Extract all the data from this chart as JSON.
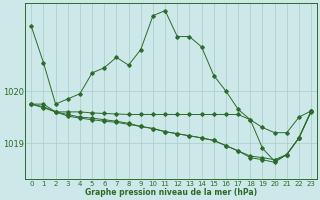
{
  "xlabel": "Graphe pression niveau de la mer (hPa)",
  "background_color": "#cce8e8",
  "grid_color": "#aacccc",
  "line_color": "#2d6b2d",
  "x_ticks": [
    0,
    1,
    2,
    3,
    4,
    5,
    6,
    7,
    8,
    9,
    10,
    11,
    12,
    13,
    14,
    15,
    16,
    17,
    18,
    19,
    20,
    21,
    22,
    23
  ],
  "ylim": [
    1018.3,
    1021.7
  ],
  "yticks": [
    1019,
    1020
  ],
  "series": [
    [
      1021.25,
      1020.55,
      1019.75,
      1019.85,
      1019.95,
      1020.35,
      1020.45,
      1020.65,
      1020.5,
      1020.8,
      1021.45,
      1021.55,
      1021.05,
      1021.05,
      1020.85,
      1020.3,
      1020.0,
      1019.65,
      1019.45,
      1018.9,
      1018.65,
      1018.78,
      1019.1,
      1019.6
    ],
    [
      1019.75,
      1019.75,
      1019.6,
      1019.6,
      1019.6,
      1019.58,
      1019.57,
      1019.56,
      1019.55,
      1019.55,
      1019.55,
      1019.55,
      1019.55,
      1019.55,
      1019.55,
      1019.55,
      1019.55,
      1019.55,
      1019.45,
      1019.3,
      1019.2,
      1019.2,
      1019.5,
      1019.62
    ],
    [
      1019.75,
      1019.7,
      1019.6,
      1019.55,
      1019.5,
      1019.48,
      1019.45,
      1019.42,
      1019.38,
      1019.32,
      1019.28,
      1019.22,
      1019.18,
      1019.14,
      1019.1,
      1019.05,
      1018.95,
      1018.85,
      1018.75,
      1018.72,
      1018.68,
      1018.78,
      1019.1,
      1019.62
    ],
    [
      1019.75,
      1019.68,
      1019.6,
      1019.52,
      1019.48,
      1019.45,
      1019.42,
      1019.4,
      1019.36,
      1019.32,
      1019.28,
      1019.22,
      1019.18,
      1019.14,
      1019.1,
      1019.05,
      1018.95,
      1018.85,
      1018.72,
      1018.68,
      1018.63,
      1018.78,
      1019.1,
      1019.62
    ]
  ]
}
